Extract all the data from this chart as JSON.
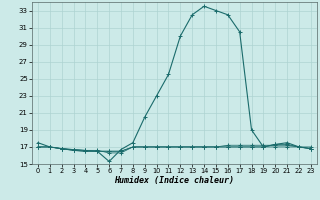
{
  "x": [
    0,
    1,
    2,
    3,
    4,
    5,
    6,
    7,
    8,
    9,
    10,
    11,
    12,
    13,
    14,
    15,
    16,
    17,
    18,
    19,
    20,
    21,
    22,
    23
  ],
  "y_main": [
    17.5,
    17.0,
    16.8,
    16.6,
    16.5,
    16.5,
    15.3,
    16.7,
    17.5,
    20.5,
    23.0,
    25.5,
    30.0,
    32.5,
    33.5,
    33.0,
    32.5,
    30.5,
    19.0,
    17.0,
    17.3,
    17.5,
    17.0,
    16.8
  ],
  "y_flat1": [
    17.0,
    17.0,
    16.8,
    16.6,
    16.5,
    16.5,
    16.5,
    16.5,
    17.0,
    17.0,
    17.0,
    17.0,
    17.0,
    17.0,
    17.0,
    17.0,
    17.0,
    17.0,
    17.0,
    17.0,
    17.0,
    17.0,
    17.0,
    17.0
  ],
  "y_flat2": [
    17.0,
    17.0,
    16.8,
    16.7,
    16.6,
    16.6,
    16.3,
    16.3,
    17.0,
    17.0,
    17.0,
    17.0,
    17.0,
    17.0,
    17.0,
    17.0,
    17.0,
    17.0,
    17.0,
    17.0,
    17.3,
    17.3,
    17.0,
    16.8
  ],
  "y_flat3": [
    17.0,
    17.0,
    16.8,
    16.7,
    16.6,
    16.5,
    16.5,
    16.5,
    17.0,
    17.0,
    17.0,
    17.0,
    17.0,
    17.0,
    17.0,
    17.0,
    17.2,
    17.2,
    17.2,
    17.2,
    17.2,
    17.2,
    17.0,
    16.8
  ],
  "xlim": [
    -0.5,
    23.5
  ],
  "ylim": [
    15,
    34
  ],
  "yticks": [
    15,
    17,
    19,
    21,
    23,
    25,
    27,
    29,
    31,
    33
  ],
  "xticks": [
    0,
    1,
    2,
    3,
    4,
    5,
    6,
    7,
    8,
    9,
    10,
    11,
    12,
    13,
    14,
    15,
    16,
    17,
    18,
    19,
    20,
    21,
    22,
    23
  ],
  "xlabel": "Humidex (Indice chaleur)",
  "bg_color": "#cceae8",
  "grid_color": "#aed4d2",
  "line_color": "#1a6b6b",
  "marker_size": 2,
  "line_width": 0.8
}
